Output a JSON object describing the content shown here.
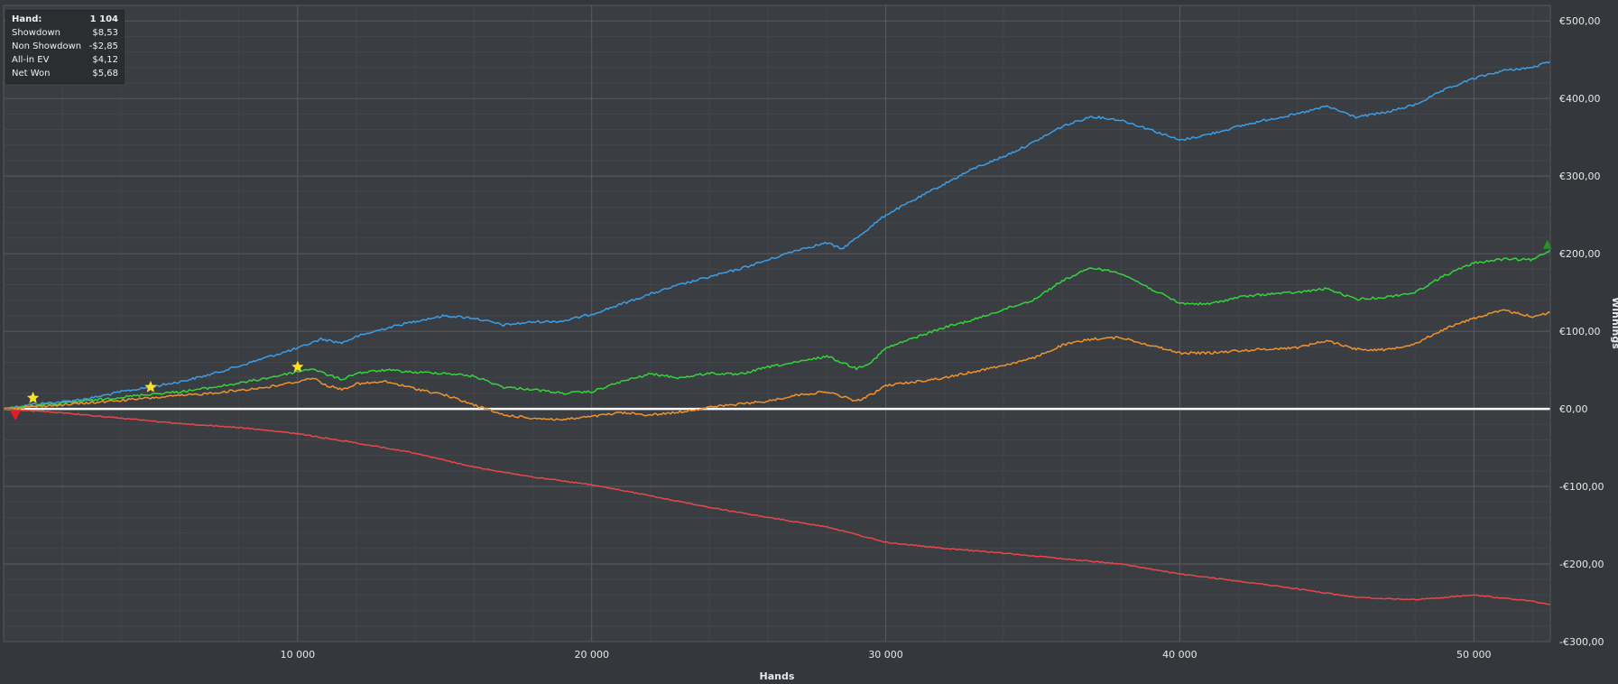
{
  "stats_panel": {
    "rows": [
      {
        "label": "Hand:",
        "value": "1 104"
      },
      {
        "label": "Showdown",
        "value": "$8,53"
      },
      {
        "label": "Non Showdown",
        "value": "-$2,85"
      },
      {
        "label": "All-in EV",
        "value": "$4,12"
      },
      {
        "label": "Net Won",
        "value": "$5,68"
      }
    ]
  },
  "chart_data": {
    "type": "line",
    "title": "",
    "xlabel": "Hands",
    "ylabel": "Winnings",
    "xlim": [
      0,
      52600
    ],
    "ylim": [
      -300,
      520
    ],
    "x_ticks": [
      {
        "value": 10000,
        "label": "10 000"
      },
      {
        "value": 20000,
        "label": "20 000"
      },
      {
        "value": 30000,
        "label": "30 000"
      },
      {
        "value": 40000,
        "label": "40 000"
      },
      {
        "value": 50000,
        "label": "50 000"
      }
    ],
    "y_ticks": [
      {
        "value": 500,
        "label": "€500,00"
      },
      {
        "value": 400,
        "label": "€400,00"
      },
      {
        "value": 300,
        "label": "€300,00"
      },
      {
        "value": 200,
        "label": "€200,00"
      },
      {
        "value": 100,
        "label": "€100,00"
      },
      {
        "value": 0,
        "label": "€0,00"
      },
      {
        "value": -100,
        "label": "-€100,00"
      },
      {
        "value": -200,
        "label": "-€200,00"
      },
      {
        "value": -300,
        "label": "-€300,00"
      }
    ],
    "grid": true,
    "legend": "none",
    "series": [
      {
        "color": "#3d9ee8",
        "points": [
          [
            0,
            0
          ],
          [
            1000,
            6
          ],
          [
            2000,
            9
          ],
          [
            3000,
            14
          ],
          [
            4000,
            22
          ],
          [
            5000,
            28
          ],
          [
            6000,
            35
          ],
          [
            7000,
            44
          ],
          [
            8000,
            55
          ],
          [
            9000,
            67
          ],
          [
            10000,
            78
          ],
          [
            10800,
            90
          ],
          [
            11500,
            85
          ],
          [
            12000,
            93
          ],
          [
            13000,
            104
          ],
          [
            14000,
            113
          ],
          [
            15000,
            120
          ],
          [
            16000,
            117
          ],
          [
            17000,
            108
          ],
          [
            18000,
            112
          ],
          [
            19000,
            113
          ],
          [
            20000,
            122
          ],
          [
            21000,
            135
          ],
          [
            22000,
            148
          ],
          [
            23000,
            160
          ],
          [
            24000,
            170
          ],
          [
            25000,
            180
          ],
          [
            26000,
            192
          ],
          [
            27000,
            205
          ],
          [
            28000,
            214
          ],
          [
            28500,
            206
          ],
          [
            29000,
            220
          ],
          [
            30000,
            250
          ],
          [
            31000,
            270
          ],
          [
            32000,
            290
          ],
          [
            33000,
            310
          ],
          [
            34000,
            325
          ],
          [
            35000,
            343
          ],
          [
            36000,
            364
          ],
          [
            37000,
            377
          ],
          [
            38000,
            372
          ],
          [
            39000,
            360
          ],
          [
            40000,
            346
          ],
          [
            41000,
            354
          ],
          [
            42000,
            364
          ],
          [
            43000,
            373
          ],
          [
            44000,
            380
          ],
          [
            45000,
            390
          ],
          [
            46000,
            376
          ],
          [
            47000,
            382
          ],
          [
            48000,
            392
          ],
          [
            49000,
            411
          ],
          [
            50000,
            426
          ],
          [
            51000,
            436
          ],
          [
            52000,
            440
          ],
          [
            52600,
            448
          ]
        ]
      },
      {
        "color": "#33d43c",
        "points": [
          [
            0,
            0
          ],
          [
            1000,
            4
          ],
          [
            2000,
            7
          ],
          [
            3000,
            11
          ],
          [
            4000,
            15
          ],
          [
            5000,
            19
          ],
          [
            6000,
            22
          ],
          [
            7000,
            27
          ],
          [
            8000,
            33
          ],
          [
            9000,
            40
          ],
          [
            10000,
            48
          ],
          [
            10500,
            52
          ],
          [
            11000,
            44
          ],
          [
            11500,
            38
          ],
          [
            12000,
            46
          ],
          [
            13000,
            50
          ],
          [
            14000,
            47
          ],
          [
            15000,
            46
          ],
          [
            16000,
            42
          ],
          [
            17000,
            28
          ],
          [
            18000,
            25
          ],
          [
            19000,
            20
          ],
          [
            20000,
            22
          ],
          [
            21000,
            35
          ],
          [
            22000,
            45
          ],
          [
            23000,
            40
          ],
          [
            24000,
            46
          ],
          [
            25000,
            44
          ],
          [
            26000,
            54
          ],
          [
            27000,
            60
          ],
          [
            28000,
            68
          ],
          [
            29000,
            52
          ],
          [
            29500,
            60
          ],
          [
            30000,
            78
          ],
          [
            31000,
            92
          ],
          [
            32000,
            105
          ],
          [
            33000,
            115
          ],
          [
            34000,
            128
          ],
          [
            35000,
            140
          ],
          [
            36000,
            165
          ],
          [
            37000,
            182
          ],
          [
            38000,
            175
          ],
          [
            39000,
            155
          ],
          [
            40000,
            136
          ],
          [
            41000,
            135
          ],
          [
            42000,
            144
          ],
          [
            43000,
            148
          ],
          [
            44000,
            150
          ],
          [
            45000,
            155
          ],
          [
            46000,
            141
          ],
          [
            47000,
            144
          ],
          [
            48000,
            150
          ],
          [
            49000,
            172
          ],
          [
            50000,
            188
          ],
          [
            51000,
            193
          ],
          [
            52000,
            192
          ],
          [
            52600,
            205
          ]
        ]
      },
      {
        "color": "#f0932e",
        "points": [
          [
            0,
            0
          ],
          [
            1000,
            3
          ],
          [
            2000,
            5
          ],
          [
            3000,
            8
          ],
          [
            4000,
            11
          ],
          [
            5000,
            14
          ],
          [
            6000,
            17
          ],
          [
            7000,
            20
          ],
          [
            8000,
            24
          ],
          [
            9000,
            28
          ],
          [
            10000,
            35
          ],
          [
            10500,
            40
          ],
          [
            11000,
            30
          ],
          [
            11500,
            25
          ],
          [
            12000,
            32
          ],
          [
            13000,
            35
          ],
          [
            14000,
            26
          ],
          [
            15000,
            18
          ],
          [
            16000,
            5
          ],
          [
            17000,
            -8
          ],
          [
            18000,
            -12
          ],
          [
            19000,
            -14
          ],
          [
            20000,
            -10
          ],
          [
            21000,
            -5
          ],
          [
            22000,
            -8
          ],
          [
            23000,
            -4
          ],
          [
            24000,
            2
          ],
          [
            25000,
            6
          ],
          [
            26000,
            10
          ],
          [
            27000,
            18
          ],
          [
            28000,
            22
          ],
          [
            29000,
            10
          ],
          [
            29500,
            18
          ],
          [
            30000,
            30
          ],
          [
            31000,
            35
          ],
          [
            32000,
            40
          ],
          [
            33000,
            48
          ],
          [
            34000,
            56
          ],
          [
            35000,
            65
          ],
          [
            36000,
            82
          ],
          [
            37000,
            90
          ],
          [
            38000,
            92
          ],
          [
            39000,
            82
          ],
          [
            40000,
            72
          ],
          [
            41000,
            72
          ],
          [
            42000,
            75
          ],
          [
            43000,
            77
          ],
          [
            44000,
            79
          ],
          [
            45000,
            88
          ],
          [
            46000,
            77
          ],
          [
            47000,
            76
          ],
          [
            48000,
            84
          ],
          [
            49000,
            103
          ],
          [
            50000,
            117
          ],
          [
            51000,
            127
          ],
          [
            52000,
            119
          ],
          [
            52600,
            124
          ]
        ]
      },
      {
        "color": "#e8474b",
        "points": [
          [
            0,
            0
          ],
          [
            2000,
            -5
          ],
          [
            4000,
            -12
          ],
          [
            6000,
            -19
          ],
          [
            8000,
            -24
          ],
          [
            10000,
            -32
          ],
          [
            12000,
            -44
          ],
          [
            14000,
            -57
          ],
          [
            16000,
            -75
          ],
          [
            18000,
            -88
          ],
          [
            20000,
            -98
          ],
          [
            22000,
            -112
          ],
          [
            24000,
            -127
          ],
          [
            26000,
            -140
          ],
          [
            28000,
            -152
          ],
          [
            30000,
            -172
          ],
          [
            32000,
            -180
          ],
          [
            34000,
            -186
          ],
          [
            36000,
            -193
          ],
          [
            38000,
            -200
          ],
          [
            40000,
            -213
          ],
          [
            42000,
            -222
          ],
          [
            44000,
            -232
          ],
          [
            46000,
            -243
          ],
          [
            48000,
            -246
          ],
          [
            50000,
            -240
          ],
          [
            52000,
            -248
          ],
          [
            52600,
            -252
          ]
        ]
      }
    ],
    "markers": [
      {
        "kind": "star",
        "x": 1000,
        "y": 14,
        "color": "#f7e324"
      },
      {
        "kind": "star",
        "x": 5000,
        "y": 28,
        "color": "#f7e324"
      },
      {
        "kind": "star",
        "x": 10000,
        "y": 54,
        "color": "#f7e324"
      },
      {
        "kind": "down-triangle",
        "x": 400,
        "y": -8,
        "color": "#e51c23"
      },
      {
        "kind": "up-triangle",
        "x": 52500,
        "y": 212,
        "color": "#1f9a1f"
      }
    ]
  }
}
